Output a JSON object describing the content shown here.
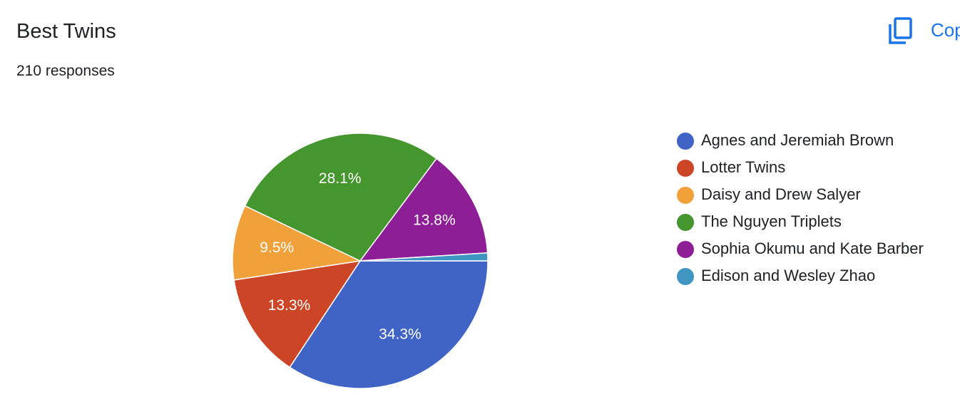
{
  "header": {
    "title": "Best Twins",
    "subtitle": "210 responses",
    "copy_button": "Copy"
  },
  "chart_data": {
    "type": "pie",
    "categories": [
      "Agnes and Jeremiah Brown",
      "Lotter Twins",
      "Daisy and Drew Salyer",
      "The Nguyen Triplets",
      "Sophia Okumu and Kate Barber",
      "Edison and Wesley Zhao"
    ],
    "values": [
      34.3,
      13.3,
      9.5,
      28.1,
      13.8,
      1.0
    ],
    "value_labels": [
      "34.3%",
      "13.3%",
      "9.5%",
      "28.1%",
      "13.8%",
      null
    ],
    "colors": [
      "#3f64c6",
      "#cc4526",
      "#f0a13a",
      "#46962f",
      "#8e1e95",
      "#4096c1"
    ],
    "legend": "right"
  }
}
